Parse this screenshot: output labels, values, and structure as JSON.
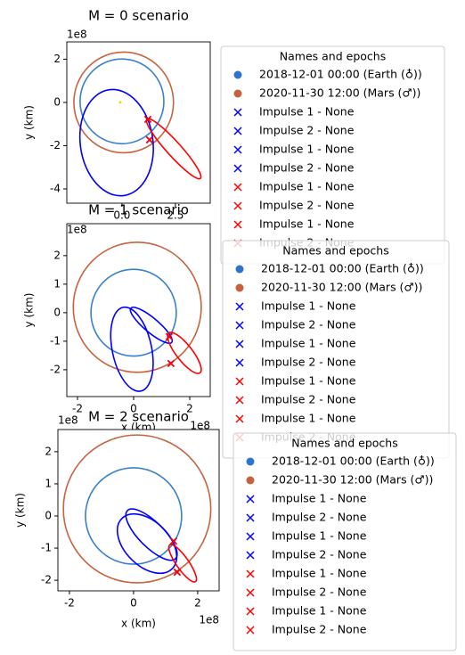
{
  "chart_data": [
    {
      "type": "orbit",
      "title": "M = 0 scenario",
      "x_label": "x (km)",
      "y_label": "y (km)",
      "x_offset": "1e8",
      "y_offset": "1e8",
      "xlim": [
        -2.58,
        4.13
      ],
      "ylim": [
        -4.66,
        2.8
      ],
      "xticks": [
        {
          "value": 0,
          "label": "0.0"
        },
        {
          "value": 2.5,
          "label": "2.5"
        }
      ],
      "yticks": [
        -4,
        -2,
        0,
        2
      ],
      "orbits": [
        {
          "color": "#3a7fd0",
          "cx": 0,
          "cy": 0.05,
          "rx": 1.96,
          "ry": 1.96,
          "angle": 0
        },
        {
          "color": "#c8623f",
          "cx": 0.08,
          "cy": 0,
          "rx": 2.33,
          "ry": 2.33,
          "angle": 0
        },
        {
          "color": "#0000ff",
          "cx": -0.25,
          "cy": -1.86,
          "rx": 1.7,
          "ry": 2.47,
          "angle": 8
        },
        {
          "color": "#ff0000",
          "cx": 2.42,
          "cy": -2.14,
          "rx": 1.87,
          "ry": 0.33,
          "angle": -48
        }
      ],
      "points": [
        {
          "color": "#e8e000",
          "x": -0.08,
          "y": 0
        }
      ],
      "legend_title": "Names and epochs",
      "series": [
        {
          "name": "2018-12-01 00:00 (Earth (♁))",
          "color": "#2d74cf",
          "marker": "o"
        },
        {
          "name": "2020-11-30 12:00 (Mars (♂))",
          "color": "#c9603c",
          "marker": "o"
        },
        {
          "name": "Impulse 1 - None",
          "color": "#0000ff",
          "marker": "x",
          "x": 1.21,
          "y": -0.78
        },
        {
          "name": "Impulse 2 - None",
          "color": "#0000ff",
          "marker": "x",
          "x": 1.29,
          "y": -1.73
        },
        {
          "name": "Impulse 1 - None",
          "color": "#0000ff",
          "marker": "x",
          "x": 1.21,
          "y": -0.78
        },
        {
          "name": "Impulse 2 - None",
          "color": "#0000ff",
          "marker": "x",
          "x": 1.29,
          "y": -1.73
        },
        {
          "name": "Impulse 1 - None",
          "color": "#ff0000",
          "marker": "x",
          "x": 1.21,
          "y": -0.78
        },
        {
          "name": "Impulse 2 - None",
          "color": "#ff0000",
          "marker": "x",
          "x": 1.29,
          "y": -1.73
        },
        {
          "name": "Impulse 1 - None",
          "color": "#ff0000",
          "marker": "x",
          "x": 1.21,
          "y": -0.78
        },
        {
          "name": "Impulse 2 - None",
          "color": "#ff0000",
          "marker": "x",
          "x": 1.29,
          "y": -1.73
        }
      ]
    },
    {
      "type": "orbit",
      "title": "M = 1 scenario",
      "x_label": "x (km)",
      "y_label": "y (km)",
      "x_offset": "1e8",
      "y_offset": "1e8",
      "xlim": [
        -2.38,
        2.73
      ],
      "ylim": [
        -2.94,
        3.12
      ],
      "xticks": [
        -2,
        0,
        2
      ],
      "yticks": [
        -2,
        -1,
        0,
        1,
        2
      ],
      "orbits": [
        {
          "color": "#3a7fd0",
          "cx": 0,
          "cy": 0,
          "rx": 1.52,
          "ry": 1.52,
          "angle": 0
        },
        {
          "color": "#c8623f",
          "cx": 0.13,
          "cy": 0.19,
          "rx": 2.28,
          "ry": 2.28,
          "angle": 0
        },
        {
          "color": "#0000ff",
          "cx": -0.06,
          "cy": -1.28,
          "rx": 0.7,
          "ry": 1.5,
          "angle": 12
        },
        {
          "color": "#0000ff",
          "cx": 0.63,
          "cy": -0.44,
          "rx": 0.95,
          "ry": 0.25,
          "angle": -40
        },
        {
          "color": "#ff0000",
          "cx": 1.81,
          "cy": -1.41,
          "rx": 0.9,
          "ry": 0.28,
          "angle": -52
        }
      ],
      "legend_title": "Names and epochs",
      "series": [
        {
          "name": "2018-12-01 00:00 (Earth (♁))",
          "color": "#2d74cf",
          "marker": "o"
        },
        {
          "name": "2020-11-30 12:00 (Mars (♂))",
          "color": "#c9603c",
          "marker": "o"
        },
        {
          "name": "Impulse 1 - None",
          "color": "#0000ff",
          "marker": "x",
          "x": 1.27,
          "y": -0.84
        },
        {
          "name": "Impulse 2 - None",
          "color": "#0000ff",
          "marker": "x",
          "x": 1.33,
          "y": -1.78
        },
        {
          "name": "Impulse 1 - None",
          "color": "#0000ff",
          "marker": "x",
          "x": 1.27,
          "y": -0.84
        },
        {
          "name": "Impulse 2 - None",
          "color": "#0000ff",
          "marker": "x",
          "x": 1.33,
          "y": -1.78
        },
        {
          "name": "Impulse 1 - None",
          "color": "#ff0000",
          "marker": "x",
          "x": 1.27,
          "y": -0.84
        },
        {
          "name": "Impulse 2 - None",
          "color": "#ff0000",
          "marker": "x",
          "x": 1.33,
          "y": -1.78
        },
        {
          "name": "Impulse 1 - None",
          "color": "#ff0000",
          "marker": "x",
          "x": 1.27,
          "y": -0.84
        },
        {
          "name": "Impulse 2 - None",
          "color": "#ff0000",
          "marker": "x",
          "x": 1.33,
          "y": -1.78
        }
      ]
    },
    {
      "type": "orbit",
      "title": "M = 2 scenario",
      "x_label": "x (km)",
      "y_label": "y (km)",
      "x_offset": "1e8",
      "y_offset": "1e8",
      "xlim": [
        -2.36,
        2.67
      ],
      "ylim": [
        -2.33,
        2.69
      ],
      "xticks": [
        -2,
        0,
        2
      ],
      "yticks": [
        -2,
        -1,
        0,
        1,
        2
      ],
      "orbits": [
        {
          "color": "#3a7fd0",
          "cx": 0,
          "cy": 0,
          "rx": 1.5,
          "ry": 1.5,
          "angle": 0
        },
        {
          "color": "#c8623f",
          "cx": 0.11,
          "cy": 0.22,
          "rx": 2.3,
          "ry": 2.3,
          "angle": 0
        },
        {
          "color": "#0000ff",
          "cx": 0.56,
          "cy": -0.58,
          "rx": 1.06,
          "ry": 0.39,
          "angle": -45
        },
        {
          "color": "#0000ff",
          "cx": 0.42,
          "cy": -0.86,
          "rx": 1.11,
          "ry": 0.69,
          "angle": -45
        },
        {
          "color": "#ff0000",
          "cx": 1.53,
          "cy": -1.47,
          "rx": 0.7,
          "ry": 0.19,
          "angle": -55
        }
      ],
      "legend_title": "Names and epochs",
      "series": [
        {
          "name": "2018-12-01 00:00 (Earth (♁))",
          "color": "#2d74cf",
          "marker": "o"
        },
        {
          "name": "2020-11-30 12:00 (Mars (♂))",
          "color": "#c9603c",
          "marker": "o"
        },
        {
          "name": "Impulse 1 - None",
          "color": "#0000ff",
          "marker": "x",
          "x": 1.25,
          "y": -0.78
        },
        {
          "name": "Impulse 2 - None",
          "color": "#0000ff",
          "marker": "x",
          "x": 1.36,
          "y": -1.75
        },
        {
          "name": "Impulse 1 - None",
          "color": "#0000ff",
          "marker": "x",
          "x": 1.25,
          "y": -0.78
        },
        {
          "name": "Impulse 2 - None",
          "color": "#0000ff",
          "marker": "x",
          "x": 1.36,
          "y": -1.75
        },
        {
          "name": "Impulse 1 - None",
          "color": "#ff0000",
          "marker": "x",
          "x": 1.25,
          "y": -0.78
        },
        {
          "name": "Impulse 2 - None",
          "color": "#ff0000",
          "marker": "x",
          "x": 1.36,
          "y": -1.75
        },
        {
          "name": "Impulse 1 - None",
          "color": "#ff0000",
          "marker": "x",
          "x": 1.25,
          "y": -0.78
        },
        {
          "name": "Impulse 2 - None",
          "color": "#ff0000",
          "marker": "x",
          "x": 1.36,
          "y": -1.75
        }
      ]
    }
  ]
}
